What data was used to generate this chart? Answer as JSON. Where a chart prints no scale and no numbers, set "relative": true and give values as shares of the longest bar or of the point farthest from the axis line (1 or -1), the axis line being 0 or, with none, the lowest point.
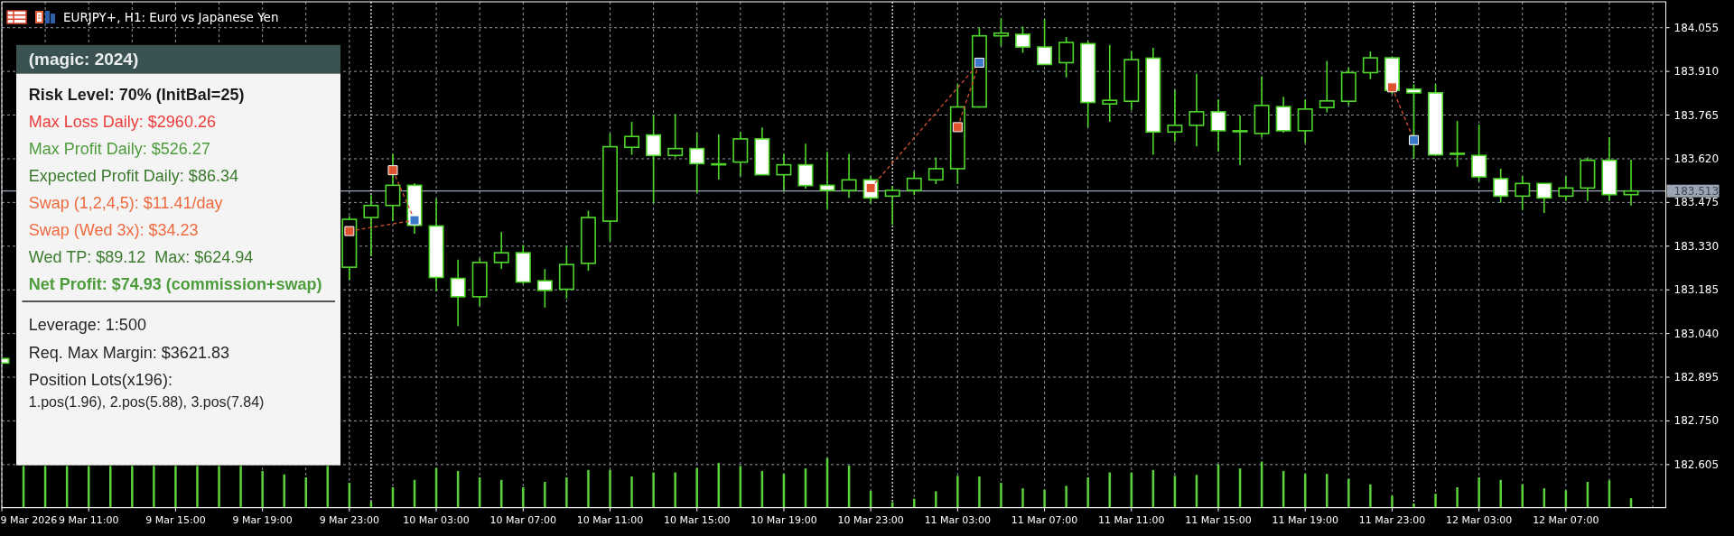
{
  "chart_data": [
    {
      "type": "candlestick",
      "title": "EURJPY+, H1: Euro vs Japanese Yen",
      "color": "#4fd82a",
      "x": [
        "2026-03-09T07:00",
        "2026-03-09T23:00",
        "2026-03-10T00:00",
        "2026-03-10T01:00",
        "2026-03-10T02:00",
        "2026-03-10T03:00",
        "2026-03-10T04:00",
        "2026-03-10T05:00",
        "2026-03-10T06:00",
        "2026-03-10T07:00",
        "2026-03-10T08:00",
        "2026-03-10T09:00",
        "2026-03-10T10:00",
        "2026-03-10T11:00",
        "2026-03-10T12:00",
        "2026-03-10T13:00",
        "2026-03-10T14:00",
        "2026-03-10T15:00",
        "2026-03-10T16:00",
        "2026-03-10T17:00",
        "2026-03-10T18:00",
        "2026-03-10T19:00",
        "2026-03-10T20:00",
        "2026-03-10T21:00",
        "2026-03-10T22:00",
        "2026-03-10T23:00",
        "2026-03-11T00:00",
        "2026-03-11T01:00",
        "2026-03-11T02:00",
        "2026-03-11T03:00",
        "2026-03-11T04:00",
        "2026-03-11T05:00",
        "2026-03-11T06:00",
        "2026-03-11T07:00",
        "2026-03-11T08:00",
        "2026-03-11T09:00",
        "2026-03-11T10:00",
        "2026-03-11T11:00",
        "2026-03-11T12:00",
        "2026-03-11T13:00",
        "2026-03-11T14:00",
        "2026-03-11T15:00",
        "2026-03-11T16:00",
        "2026-03-11T17:00",
        "2026-03-11T18:00",
        "2026-03-11T19:00",
        "2026-03-11T20:00",
        "2026-03-11T21:00",
        "2026-03-11T22:00",
        "2026-03-11T23:00",
        "2026-03-12T00:00",
        "2026-03-12T01:00",
        "2026-03-12T02:00",
        "2026-03-12T03:00",
        "2026-03-12T04:00",
        "2026-03-12T05:00",
        "2026-03-12T06:00",
        "2026-03-12T07:00",
        "2026-03-12T08:00",
        "2026-03-12T09:00",
        "2026-03-12T10:00"
      ],
      "ohlc": [
        [
          182.957,
          182.957,
          182.942,
          182.942
        ],
        [
          183.26,
          183.43,
          183.218,
          183.419
        ],
        [
          183.425,
          183.499,
          183.297,
          183.465
        ],
        [
          183.465,
          183.636,
          183.413,
          183.532
        ],
        [
          183.532,
          183.539,
          183.371,
          183.399
        ],
        [
          183.397,
          183.487,
          183.18,
          183.226
        ],
        [
          183.223,
          183.285,
          183.065,
          183.162
        ],
        [
          183.162,
          183.29,
          183.132,
          183.276
        ],
        [
          183.276,
          183.377,
          183.254,
          183.308
        ],
        [
          183.308,
          183.334,
          183.205,
          183.211
        ],
        [
          183.215,
          183.254,
          183.126,
          183.183
        ],
        [
          183.187,
          183.33,
          183.156,
          183.269
        ],
        [
          183.273,
          183.448,
          183.248,
          183.425
        ],
        [
          183.413,
          183.704,
          183.346,
          183.66
        ],
        [
          183.658,
          183.743,
          183.633,
          183.694
        ],
        [
          183.699,
          183.765,
          183.474,
          183.631
        ],
        [
          183.631,
          183.768,
          183.624,
          183.654
        ],
        [
          183.654,
          183.707,
          183.505,
          183.604
        ],
        [
          183.603,
          183.701,
          183.551,
          183.603
        ],
        [
          183.609,
          183.709,
          183.562,
          183.686
        ],
        [
          183.686,
          183.724,
          183.566,
          183.567
        ],
        [
          183.567,
          183.636,
          183.515,
          183.6
        ],
        [
          183.6,
          183.67,
          183.521,
          183.531
        ],
        [
          183.532,
          183.643,
          183.454,
          183.515
        ],
        [
          183.515,
          183.636,
          183.49,
          183.55
        ],
        [
          183.55,
          183.562,
          183.472,
          183.49
        ],
        [
          183.496,
          183.529,
          183.401,
          183.515
        ],
        [
          183.515,
          183.578,
          183.499,
          183.555
        ],
        [
          183.55,
          183.624,
          183.536,
          183.587
        ],
        [
          183.587,
          183.868,
          183.536,
          183.792
        ],
        [
          183.792,
          184.055,
          183.79,
          184.028
        ],
        [
          184.028,
          184.086,
          183.994,
          184.037
        ],
        [
          184.033,
          184.059,
          183.972,
          183.991
        ],
        [
          183.991,
          184.083,
          183.932,
          183.933
        ],
        [
          183.939,
          184.024,
          183.89,
          184.006
        ],
        [
          184.002,
          184.01,
          183.725,
          183.807
        ],
        [
          183.802,
          183.998,
          183.743,
          183.814
        ],
        [
          183.811,
          183.976,
          183.782,
          183.949
        ],
        [
          183.954,
          183.988,
          183.633,
          183.709
        ],
        [
          183.709,
          183.85,
          183.676,
          183.731
        ],
        [
          183.731,
          183.902,
          183.661,
          183.776
        ],
        [
          183.776,
          183.817,
          183.643,
          183.713
        ],
        [
          183.713,
          183.764,
          183.599,
          183.713
        ],
        [
          183.704,
          183.894,
          183.692,
          183.797
        ],
        [
          183.793,
          183.826,
          183.707,
          183.713
        ],
        [
          183.713,
          183.817,
          183.672,
          183.785
        ],
        [
          183.79,
          183.945,
          183.774,
          183.812
        ],
        [
          183.811,
          183.923,
          183.798,
          183.906
        ],
        [
          183.906,
          183.976,
          183.884,
          183.955
        ],
        [
          183.955,
          183.957,
          183.835,
          183.847
        ],
        [
          183.851,
          183.868,
          183.621,
          183.839
        ],
        [
          183.839,
          183.868,
          183.632,
          183.633
        ],
        [
          183.638,
          183.746,
          183.594,
          183.635
        ],
        [
          183.631,
          183.734,
          183.545,
          183.56
        ],
        [
          183.554,
          183.587,
          183.474,
          183.496
        ],
        [
          183.496,
          183.562,
          183.45,
          183.538
        ],
        [
          183.538,
          183.539,
          183.44,
          183.49
        ],
        [
          183.496,
          183.562,
          183.48,
          183.523
        ],
        [
          183.523,
          183.624,
          183.48,
          183.615
        ],
        [
          183.615,
          183.692,
          183.48,
          183.501
        ],
        [
          183.501,
          183.617,
          183.465,
          183.513
        ]
      ],
      "colors": [
        "#ffffff",
        "#000000",
        "#000000",
        "#000000",
        "#ffffff",
        "#ffffff",
        "#ffffff",
        "#000000",
        "#000000",
        "#ffffff",
        "#ffffff",
        "#000000",
        "#000000",
        "#000000",
        "#000000",
        "#ffffff",
        "#000000",
        "#ffffff",
        "#000000",
        "#000000",
        "#ffffff",
        "#000000",
        "#ffffff",
        "#ffffff",
        "#000000",
        "#ffffff",
        "#000000",
        "#000000",
        "#000000",
        "#000000",
        "#000000",
        "#000000",
        "#ffffff",
        "#ffffff",
        "#000000",
        "#ffffff",
        "#000000",
        "#000000",
        "#ffffff",
        "#000000",
        "#000000",
        "#ffffff",
        "#000000",
        "#000000",
        "#ffffff",
        "#000000",
        "#000000",
        "#000000",
        "#000000",
        "#ffffff",
        "#ffffff",
        "#ffffff",
        "#ffffff",
        "#ffffff",
        "#ffffff",
        "#000000",
        "#ffffff",
        "#000000",
        "#000000",
        "#ffffff",
        "#000000"
      ],
      "series": [
        {
          "type": "line",
          "color": "#d5512e",
          "line_style": "dashed",
          "x": [
            "2026-03-09T23:00",
            "2026-03-10T02:00"
          ],
          "values": [
            183.38,
            183.416
          ]
        },
        {
          "type": "line",
          "color": "#d5512e",
          "line_style": "dashed",
          "x": [
            "2026-03-10T01:00",
            "2026-03-10T02:00"
          ],
          "values": [
            183.582,
            183.416
          ]
        },
        {
          "type": "line",
          "color": "#d5512e",
          "line_style": "dashed",
          "x": [
            "2026-03-10T23:00",
            "2026-03-11T04:00"
          ],
          "values": [
            183.523,
            183.939
          ]
        },
        {
          "type": "line",
          "color": "#d5512e",
          "line_style": "dashed",
          "x": [
            "2026-03-11T03:00",
            "2026-03-11T04:00"
          ],
          "values": [
            183.725,
            183.939
          ]
        },
        {
          "type": "line",
          "color": "#d5512e",
          "line_style": "dashed",
          "x": [
            "2026-03-11T23:00",
            "2026-03-12T00:00"
          ],
          "values": [
            183.857,
            183.682
          ]
        },
        {
          "type": "scatter",
          "color": "#e0532f",
          "marker": "square",
          "x": [
            "2026-03-09T23:00",
            "2026-03-10T01:00",
            "2026-03-10T23:00",
            "2026-03-11T03:00",
            "2026-03-11T23:00"
          ],
          "values": [
            183.38,
            183.582,
            183.523,
            183.725,
            183.857
          ]
        },
        {
          "type": "scatter",
          "color": "#3c78c8",
          "marker": "square",
          "x": [
            "2026-03-10T02:00",
            "2026-03-11T04:00",
            "2026-03-12T00:00"
          ],
          "values": [
            183.416,
            183.939,
            183.682
          ]
        }
      ],
      "xlim": [
        "2026-03-09T07:00",
        "2026-03-12T11:36"
      ],
      "xticks": [
        {
          "value": "2026-03-09T07:00",
          "label": "9 Mar 2026"
        },
        {
          "value": "2026-03-09T09:00",
          "label": null
        },
        {
          "value": "2026-03-09T11:00",
          "label": "9 Mar 11:00"
        },
        {
          "value": "2026-03-09T13:00",
          "label": null
        },
        {
          "value": "2026-03-09T15:00",
          "label": "9 Mar 15:00"
        },
        {
          "value": "2026-03-09T17:00",
          "label": null
        },
        {
          "value": "2026-03-09T19:00",
          "label": "9 Mar 19:00"
        },
        {
          "value": "2026-03-09T21:00",
          "label": null
        },
        {
          "value": "2026-03-09T23:00",
          "label": "9 Mar 23:00"
        },
        {
          "value": "2026-03-10T01:00",
          "label": null
        },
        {
          "value": "2026-03-10T03:00",
          "label": "10 Mar 03:00"
        },
        {
          "value": "2026-03-10T05:00",
          "label": null
        },
        {
          "value": "2026-03-10T07:00",
          "label": "10 Mar 07:00"
        },
        {
          "value": "2026-03-10T09:00",
          "label": null
        },
        {
          "value": "2026-03-10T11:00",
          "label": "10 Mar 11:00"
        },
        {
          "value": "2026-03-10T13:00",
          "label": null
        },
        {
          "value": "2026-03-10T15:00",
          "label": "10 Mar 15:00"
        },
        {
          "value": "2026-03-10T17:00",
          "label": null
        },
        {
          "value": "2026-03-10T19:00",
          "label": "10 Mar 19:00"
        },
        {
          "value": "2026-03-10T21:00",
          "label": null
        },
        {
          "value": "2026-03-10T23:00",
          "label": "10 Mar 23:00"
        },
        {
          "value": "2026-03-11T01:00",
          "label": null
        },
        {
          "value": "2026-03-11T03:00",
          "label": "11 Mar 03:00"
        },
        {
          "value": "2026-03-11T05:00",
          "label": null
        },
        {
          "value": "2026-03-11T07:00",
          "label": "11 Mar 07:00"
        },
        {
          "value": "2026-03-11T09:00",
          "label": null
        },
        {
          "value": "2026-03-11T11:00",
          "label": "11 Mar 11:00"
        },
        {
          "value": "2026-03-11T13:00",
          "label": null
        },
        {
          "value": "2026-03-11T15:00",
          "label": "11 Mar 15:00"
        },
        {
          "value": "2026-03-11T17:00",
          "label": null
        },
        {
          "value": "2026-03-11T19:00",
          "label": "11 Mar 19:00"
        },
        {
          "value": "2026-03-11T21:00",
          "label": null
        },
        {
          "value": "2026-03-11T23:00",
          "label": "11 Mar 23:00"
        },
        {
          "value": "2026-03-12T01:00",
          "label": null
        },
        {
          "value": "2026-03-12T03:00",
          "label": "12 Mar 03:00"
        },
        {
          "value": "2026-03-12T05:00",
          "label": null
        },
        {
          "value": "2026-03-12T07:00",
          "label": "12 Mar 07:00"
        },
        {
          "value": "2026-03-12T09:00",
          "label": null
        },
        {
          "value": "2026-03-12T11:00",
          "label": null
        }
      ],
      "ylim": [
        182.462,
        184.141
      ],
      "yticks": [
        182.605,
        {
          "value": 182.75,
          "label": "182.750"
        },
        182.895,
        {
          "value": 183.04,
          "label": "183.040"
        },
        183.185,
        {
          "value": 183.33,
          "label": "183.330"
        },
        183.475,
        {
          "value": 183.62,
          "label": "183.620"
        },
        183.765,
        {
          "value": 183.91,
          "label": "183.910"
        },
        184.055
      ],
      "grid": true,
      "ref_lines": [
        {
          "axis": "y",
          "value": 183.513,
          "label": "183.513",
          "color": "#9aa6b2"
        },
        {
          "axis": "x",
          "value": "2026-03-10T00:00",
          "color": "#ffffff",
          "line_style": "dotted"
        },
        {
          "axis": "x",
          "value": "2026-03-11T00:00",
          "color": "#ffffff",
          "line_style": "dotted"
        },
        {
          "axis": "x",
          "value": "2026-03-12T00:00",
          "color": "#ffffff",
          "line_style": "dotted"
        }
      ]
    },
    {
      "type": "bar",
      "relative": true,
      "color": "#5cd13a",
      "x": [
        "2026-03-09T08:00",
        "2026-03-09T09:00",
        "2026-03-09T10:00",
        "2026-03-09T11:00",
        "2026-03-09T12:00",
        "2026-03-09T13:00",
        "2026-03-09T14:00",
        "2026-03-09T15:00",
        "2026-03-09T16:00",
        "2026-03-09T17:00",
        "2026-03-09T18:00",
        "2026-03-09T19:00",
        "2026-03-09T20:00",
        "2026-03-09T21:00",
        "2026-03-09T22:00",
        "2026-03-09T23:00",
        "2026-03-10T00:00",
        "2026-03-10T01:00",
        "2026-03-10T02:00",
        "2026-03-10T03:00",
        "2026-03-10T04:00",
        "2026-03-10T05:00",
        "2026-03-10T06:00",
        "2026-03-10T07:00",
        "2026-03-10T08:00",
        "2026-03-10T09:00",
        "2026-03-10T10:00",
        "2026-03-10T11:00",
        "2026-03-10T12:00",
        "2026-03-10T13:00",
        "2026-03-10T14:00",
        "2026-03-10T15:00",
        "2026-03-10T16:00",
        "2026-03-10T17:00",
        "2026-03-10T18:00",
        "2026-03-10T19:00",
        "2026-03-10T20:00",
        "2026-03-10T21:00",
        "2026-03-10T22:00",
        "2026-03-10T23:00",
        "2026-03-11T00:00",
        "2026-03-11T01:00",
        "2026-03-11T02:00",
        "2026-03-11T03:00",
        "2026-03-11T04:00",
        "2026-03-11T05:00",
        "2026-03-11T06:00",
        "2026-03-11T07:00",
        "2026-03-11T08:00",
        "2026-03-11T09:00",
        "2026-03-11T10:00",
        "2026-03-11T11:00",
        "2026-03-11T12:00",
        "2026-03-11T13:00",
        "2026-03-11T14:00",
        "2026-03-11T15:00",
        "2026-03-11T16:00",
        "2026-03-11T17:00",
        "2026-03-11T18:00",
        "2026-03-11T19:00",
        "2026-03-11T20:00",
        "2026-03-11T21:00",
        "2026-03-11T22:00",
        "2026-03-11T23:00",
        "2026-03-12T00:00",
        "2026-03-12T01:00",
        "2026-03-12T02:00",
        "2026-03-12T03:00",
        "2026-03-12T04:00",
        "2026-03-12T05:00",
        "2026-03-12T06:00",
        "2026-03-12T07:00",
        "2026-03-12T08:00",
        "2026-03-12T09:00",
        "2026-03-12T10:00"
      ],
      "values": [
        0.84,
        0.84,
        0.84,
        0.84,
        0.84,
        0.84,
        0.84,
        0.84,
        0.84,
        0.84,
        0.84,
        0.74,
        0.67,
        0.61,
        0.84,
        0.5,
        0.12,
        0.41,
        0.56,
        0.8,
        0.74,
        0.61,
        0.56,
        0.41,
        0.52,
        0.61,
        0.76,
        0.76,
        0.63,
        0.71,
        0.71,
        0.8,
        0.9,
        0.84,
        0.74,
        0.68,
        0.79,
        1,
        0.85,
        0.34,
        0.11,
        0.18,
        0.33,
        0.64,
        0.63,
        0.5,
        0.39,
        0.36,
        0.44,
        0.61,
        0.71,
        0.71,
        0.76,
        0.64,
        0.66,
        0.87,
        0.79,
        0.93,
        0.74,
        0.68,
        0.68,
        0.58,
        0.47,
        0.24,
        0.08,
        0.28,
        0.41,
        0.61,
        0.56,
        0.47,
        0.39,
        0.35,
        0.52,
        0.55,
        0.19
      ],
      "xlim": [
        "2026-03-09T07:00",
        "2026-03-12T11:36"
      ]
    },
    {
      "type": "other",
      "title": "(magic: 2024)",
      "annotations": [
        "Risk Level: 70% (InitBal=25)",
        "Max Loss Daily: $2960.26",
        "Max Profit Daily: $526.27",
        "Expected Profit Daily: $86.34",
        "Swap (1,2,4,5): $11.41/day",
        "Swap (Wed 3x): $34.23",
        "Wed TP: $89.12  Max: $624.94",
        "Net Profit: $74.93 (commission+swap)",
        "Leverage: 1:500",
        "Req. Max Margin: $3621.83",
        "Position Lots(x196):",
        "1.pos(1.96), 2.pos(5.88), 3.pos(7.84)"
      ],
      "colors": [
        "#1c1c1c",
        "#ec3d3a",
        "#4d9c3c",
        "#3b7a2d",
        "#ef6a3f",
        "#ef6a3f",
        "#3b7a2d",
        "#4d9c3c",
        "#262626",
        "#262626",
        "#262626",
        "#262626"
      ]
    }
  ]
}
